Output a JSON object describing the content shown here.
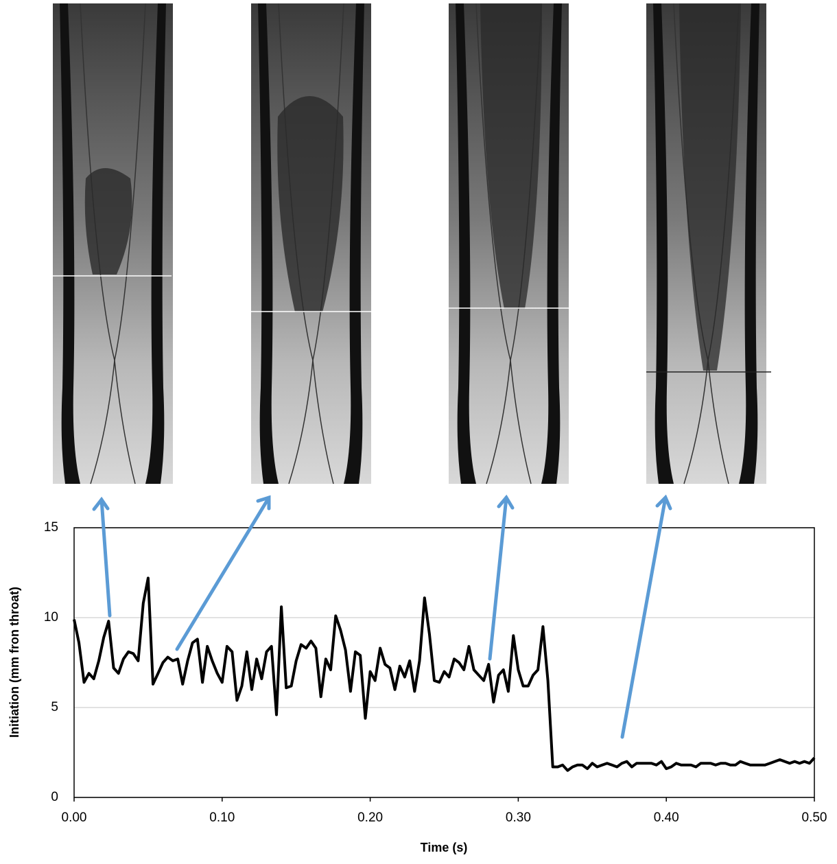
{
  "chart_data": {
    "type": "line",
    "x": [
      0,
      0.0033,
      0.0067,
      0.01,
      0.0133,
      0.0167,
      0.02,
      0.0233,
      0.0267,
      0.03,
      0.0333,
      0.0367,
      0.04,
      0.0433,
      0.0467,
      0.05,
      0.0533,
      0.0567,
      0.06,
      0.0633,
      0.0667,
      0.07,
      0.0733,
      0.0767,
      0.08,
      0.0833,
      0.0867,
      0.09,
      0.0933,
      0.0967,
      0.1,
      0.1033,
      0.1067,
      0.11,
      0.1133,
      0.1167,
      0.12,
      0.1233,
      0.1267,
      0.13,
      0.1333,
      0.1367,
      0.14,
      0.1433,
      0.1467,
      0.15,
      0.1533,
      0.1567,
      0.16,
      0.1633,
      0.1667,
      0.17,
      0.1733,
      0.1767,
      0.18,
      0.1833,
      0.1867,
      0.19,
      0.1933,
      0.1967,
      0.2,
      0.2033,
      0.2067,
      0.21,
      0.2133,
      0.2167,
      0.22,
      0.2233,
      0.2267,
      0.23,
      0.2333,
      0.2367,
      0.24,
      0.2433,
      0.2467,
      0.25,
      0.2533,
      0.2567,
      0.26,
      0.2633,
      0.2667,
      0.27,
      0.2733,
      0.2767,
      0.28,
      0.2833,
      0.2867,
      0.29,
      0.2933,
      0.2967,
      0.3,
      0.3033,
      0.3067,
      0.31,
      0.3133,
      0.3167,
      0.32,
      0.3233,
      0.3267,
      0.33,
      0.3333,
      0.3367,
      0.34,
      0.3433,
      0.3467,
      0.35,
      0.3533,
      0.3567,
      0.36,
      0.3633,
      0.3667,
      0.37,
      0.3733,
      0.3767,
      0.38,
      0.3833,
      0.3867,
      0.39,
      0.3933,
      0.3967,
      0.4,
      0.4033,
      0.4067,
      0.41,
      0.4133,
      0.4167,
      0.42,
      0.4233,
      0.4267,
      0.43,
      0.4333,
      0.4367,
      0.44,
      0.4433,
      0.4467,
      0.45,
      0.4533,
      0.4567,
      0.46,
      0.4633,
      0.4667,
      0.47,
      0.4733,
      0.4767,
      0.48,
      0.4833,
      0.4867,
      0.49,
      0.4933,
      0.4967,
      0.5
    ],
    "values": [
      9.9,
      8.6,
      6.4,
      6.9,
      6.6,
      7.6,
      8.9,
      9.8,
      7.2,
      6.9,
      7.7,
      8.1,
      8.0,
      7.6,
      10.8,
      12.2,
      6.3,
      6.9,
      7.5,
      7.8,
      7.6,
      7.7,
      6.3,
      7.6,
      8.6,
      8.8,
      6.4,
      8.4,
      7.6,
      6.9,
      6.4,
      8.4,
      8.1,
      5.4,
      6.2,
      8.1,
      6.0,
      7.7,
      6.6,
      8.1,
      8.4,
      4.6,
      10.6,
      6.1,
      6.2,
      7.6,
      8.5,
      8.3,
      8.7,
      8.3,
      5.6,
      7.7,
      7.1,
      10.1,
      9.3,
      8.2,
      5.9,
      8.1,
      7.9,
      4.4,
      7.0,
      6.5,
      8.3,
      7.4,
      7.2,
      6.0,
      7.3,
      6.7,
      7.6,
      5.9,
      7.6,
      11.1,
      9.1,
      6.5,
      6.4,
      7.0,
      6.7,
      7.7,
      7.5,
      7.1,
      8.4,
      7.1,
      6.8,
      6.5,
      7.4,
      5.3,
      6.8,
      7.1,
      5.9,
      9.0,
      7.1,
      6.2,
      6.2,
      6.8,
      7.1,
      9.5,
      6.5,
      1.7,
      1.7,
      1.8,
      1.5,
      1.7,
      1.8,
      1.8,
      1.6,
      1.9,
      1.7,
      1.8,
      1.9,
      1.8,
      1.7,
      1.9,
      2.0,
      1.7,
      1.9,
      1.9,
      1.9,
      1.9,
      1.8,
      2.0,
      1.6,
      1.7,
      1.9,
      1.8,
      1.8,
      1.8,
      1.7,
      1.9,
      1.9,
      1.9,
      1.8,
      1.9,
      1.9,
      1.8,
      1.8,
      2.0,
      1.9,
      1.8,
      1.8,
      1.8,
      1.8,
      1.9,
      2.0,
      2.1,
      2.0,
      1.9,
      2.0,
      1.9,
      2.0,
      1.9,
      2.2
    ],
    "color": "#000000",
    "x_label": "Time (s)",
    "y_label": "Initiation (mm fron throat)",
    "xlim": [
      0,
      0.5
    ],
    "ylim": [
      0,
      15
    ],
    "xticks": [
      {
        "value": 0,
        "label": "0.00"
      },
      {
        "value": 0.1,
        "label": "0.10"
      },
      {
        "value": 0.2,
        "label": "0.20"
      },
      {
        "value": 0.3,
        "label": "0.30"
      },
      {
        "value": 0.4,
        "label": "0.40"
      },
      {
        "value": 0.5,
        "label": "0.50"
      }
    ],
    "yticks": [
      0,
      5,
      10,
      15
    ],
    "grid": true
  }
}
